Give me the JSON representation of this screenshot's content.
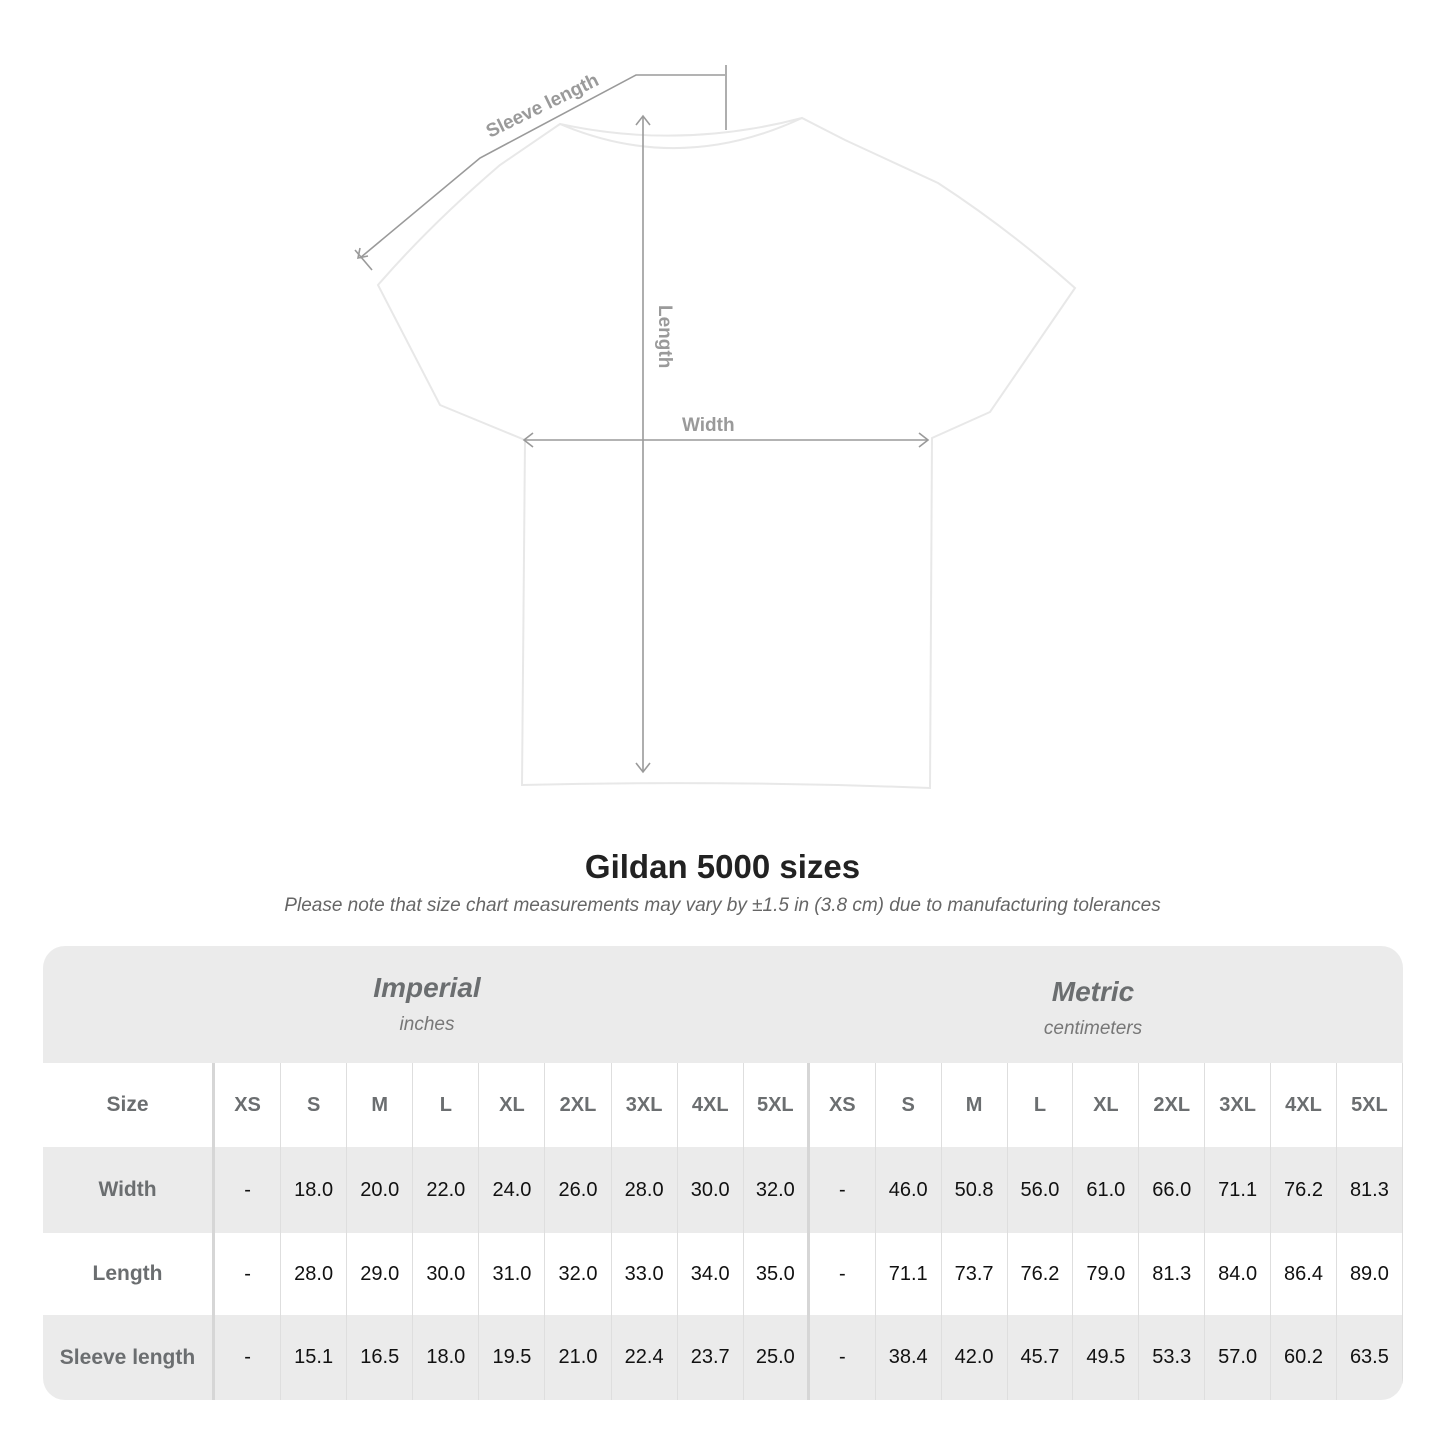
{
  "diagram": {
    "labels": {
      "sleeve": "Sleeve length",
      "length": "Length",
      "width": "Width"
    },
    "shirt_color": "#ffffff",
    "line_color": "#9a9a9a"
  },
  "title": "Gildan 5000 sizes",
  "subtitle": "Please note that size chart measurements may vary by ±1.5 in (3.8 cm) due to manufacturing tolerances",
  "table": {
    "imperial": {
      "name": "Imperial",
      "unit": "inches"
    },
    "metric": {
      "name": "Metric",
      "unit": "centimeters"
    },
    "size_label": "Size",
    "sizes": [
      "XS",
      "S",
      "M",
      "L",
      "XL",
      "2XL",
      "3XL",
      "4XL",
      "5XL"
    ],
    "rows": [
      {
        "label": "Width",
        "imperial": [
          "-",
          "18.0",
          "20.0",
          "22.0",
          "24.0",
          "26.0",
          "28.0",
          "30.0",
          "32.0"
        ],
        "metric": [
          "-",
          "46.0",
          "50.8",
          "56.0",
          "61.0",
          "66.0",
          "71.1",
          "76.2",
          "81.3"
        ]
      },
      {
        "label": "Length",
        "imperial": [
          "-",
          "28.0",
          "29.0",
          "30.0",
          "31.0",
          "32.0",
          "33.0",
          "34.0",
          "35.0"
        ],
        "metric": [
          "-",
          "71.1",
          "73.7",
          "76.2",
          "79.0",
          "81.3",
          "84.0",
          "86.4",
          "89.0"
        ]
      },
      {
        "label": "Sleeve length",
        "imperial": [
          "-",
          "15.1",
          "16.5",
          "18.0",
          "19.5",
          "21.0",
          "22.4",
          "23.7",
          "25.0"
        ],
        "metric": [
          "-",
          "38.4",
          "42.0",
          "45.7",
          "49.5",
          "53.3",
          "57.0",
          "60.2",
          "63.5"
        ]
      }
    ],
    "header_bg": "#ebebeb",
    "text_color": "#6b6e70"
  }
}
